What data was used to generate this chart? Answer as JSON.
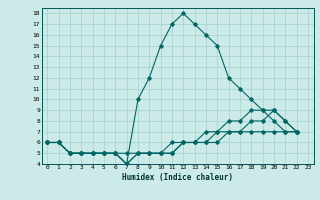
{
  "title": "",
  "xlabel": "Humidex (Indice chaleur)",
  "ylabel": "",
  "bg_color": "#cceae7",
  "grid_color": "#aad4d0",
  "line_color": "#006666",
  "xlim": [
    -0.5,
    23.5
  ],
  "ylim": [
    4,
    18.5
  ],
  "xticks": [
    0,
    1,
    2,
    3,
    4,
    5,
    6,
    7,
    8,
    9,
    10,
    11,
    12,
    13,
    14,
    15,
    16,
    17,
    18,
    19,
    20,
    21,
    22,
    23
  ],
  "yticks": [
    4,
    5,
    6,
    7,
    8,
    9,
    10,
    11,
    12,
    13,
    14,
    15,
    16,
    17,
    18
  ],
  "series": [
    [
      6,
      6,
      5,
      5,
      5,
      5,
      5,
      4,
      10,
      12,
      15,
      17,
      18,
      17,
      16,
      15,
      12,
      11,
      10,
      9,
      8,
      7,
      7
    ],
    [
      6,
      6,
      5,
      5,
      5,
      5,
      5,
      4,
      5,
      5,
      5,
      6,
      6,
      6,
      7,
      7,
      8,
      8,
      9,
      9,
      9,
      8,
      7
    ],
    [
      6,
      6,
      5,
      5,
      5,
      5,
      5,
      4,
      5,
      5,
      5,
      5,
      6,
      6,
      6,
      7,
      7,
      7,
      8,
      8,
      9,
      8,
      7
    ],
    [
      6,
      6,
      5,
      5,
      5,
      5,
      5,
      5,
      5,
      5,
      5,
      5,
      6,
      6,
      6,
      6,
      7,
      7,
      7,
      7,
      7,
      7,
      7
    ]
  ],
  "x_values": [
    0,
    1,
    2,
    3,
    4,
    5,
    6,
    7,
    8,
    9,
    10,
    11,
    12,
    13,
    14,
    15,
    16,
    17,
    18,
    19,
    20,
    21,
    22
  ]
}
